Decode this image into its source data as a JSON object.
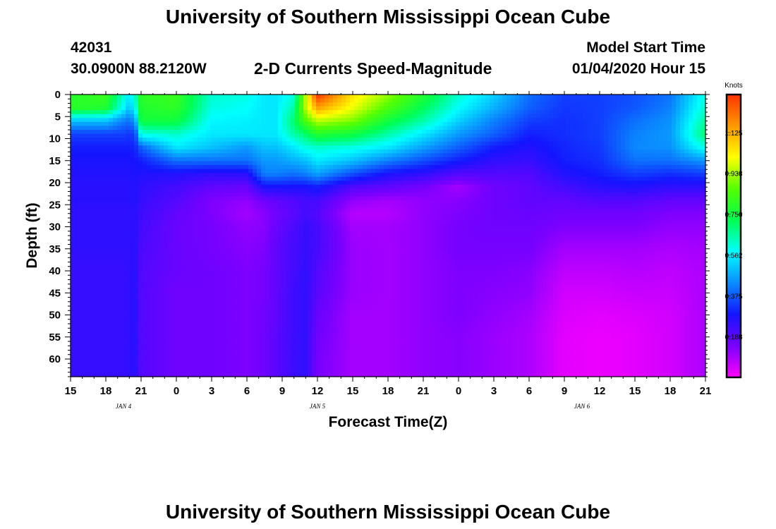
{
  "header": {
    "title": "University of Southern Mississippi Ocean Cube",
    "station_id": "42031",
    "location": "30.0900N 88.2120W",
    "product": "2-D Currents Speed-Magnitude",
    "model_start_label": "Model Start Time",
    "model_start_value": "01/04/2020 Hour 15"
  },
  "footer": {
    "title": "University of Southern Mississippi Ocean Cube"
  },
  "colors": {
    "scale": [
      "#ff00ff",
      "#7a00ff",
      "#1414ff",
      "#0a8cff",
      "#00ffff",
      "#00ff50",
      "#55ff00",
      "#ffff00",
      "#ff9900",
      "#ff3300"
    ]
  },
  "chart_data": {
    "type": "heatmap",
    "xlabel": "Forecast Time(Z)",
    "ylabel": "Depth (ft)",
    "colorbar_label": "Knots",
    "x_range": [
      0,
      54
    ],
    "y_range": [
      0,
      64
    ],
    "x_tick_labels": [
      "15",
      "18",
      "21",
      "0",
      "3",
      "6",
      "9",
      "12",
      "15",
      "18",
      "21",
      "0",
      "3",
      "6",
      "9",
      "12",
      "15",
      "18",
      "21"
    ],
    "y_ticks": [
      0,
      5,
      10,
      15,
      20,
      25,
      30,
      35,
      40,
      45,
      50,
      55,
      60
    ],
    "y_tick_labels": [
      "0",
      "5",
      "10",
      "15",
      "20",
      "25",
      "30",
      "35",
      "40",
      "45",
      "50",
      "55",
      "60"
    ],
    "date_labels": [
      {
        "text": "JAN 4",
        "x": 4.5
      },
      {
        "text": "JAN 5",
        "x": 21
      },
      {
        "text": "JAN 6",
        "x": 43.5
      }
    ],
    "colorbar_ticks": [
      0.188,
      0.375,
      0.562,
      0.75,
      0.938,
      1.125
    ],
    "colorbar_tick_labels": [
      "0.188",
      "0.375",
      "0.562",
      "0.750",
      "0.938",
      "1.125"
    ],
    "value_range": [
      0,
      1.3
    ],
    "x_hours": [
      0,
      3,
      4.5,
      5,
      5.5,
      6,
      9,
      12,
      15,
      16.5,
      17.5,
      19,
      20,
      21,
      24,
      27,
      30,
      33,
      36,
      39,
      42,
      45,
      48,
      51,
      54
    ],
    "depths": [
      0,
      3,
      6,
      9,
      12,
      15,
      18,
      21,
      24,
      27,
      30,
      35,
      40,
      45,
      50,
      55,
      60,
      64
    ],
    "values": [
      [
        0.78,
        0.8,
        0.5,
        0.34,
        0.3,
        0.28,
        0.27,
        0.26,
        0.26,
        0.25,
        0.25,
        0.25,
        0.24,
        0.24,
        0.24,
        0.24,
        0.24,
        0.24
      ],
      [
        0.82,
        0.78,
        0.5,
        0.34,
        0.3,
        0.28,
        0.27,
        0.26,
        0.26,
        0.25,
        0.25,
        0.25,
        0.24,
        0.24,
        0.24,
        0.24,
        0.24,
        0.24
      ],
      [
        0.62,
        0.58,
        0.42,
        0.34,
        0.3,
        0.28,
        0.27,
        0.26,
        0.26,
        0.25,
        0.25,
        0.25,
        0.24,
        0.24,
        0.24,
        0.24,
        0.24,
        0.24
      ],
      [
        0.55,
        0.5,
        0.4,
        0.33,
        0.3,
        0.28,
        0.27,
        0.26,
        0.26,
        0.25,
        0.25,
        0.25,
        0.25,
        0.25,
        0.25,
        0.25,
        0.25,
        0.25
      ],
      [
        0.62,
        0.58,
        0.45,
        0.34,
        0.31,
        0.29,
        0.28,
        0.27,
        0.27,
        0.26,
        0.26,
        0.26,
        0.26,
        0.26,
        0.26,
        0.26,
        0.26,
        0.26
      ],
      [
        0.8,
        0.78,
        0.75,
        0.6,
        0.38,
        0.3,
        0.27,
        0.25,
        0.24,
        0.23,
        0.22,
        0.21,
        0.2,
        0.2,
        0.2,
        0.2,
        0.2,
        0.2
      ],
      [
        0.82,
        0.8,
        0.75,
        0.62,
        0.55,
        0.4,
        0.27,
        0.22,
        0.2,
        0.18,
        0.17,
        0.17,
        0.17,
        0.16,
        0.16,
        0.16,
        0.16,
        0.16
      ],
      [
        0.62,
        0.6,
        0.57,
        0.55,
        0.5,
        0.4,
        0.25,
        0.18,
        0.14,
        0.14,
        0.15,
        0.15,
        0.16,
        0.16,
        0.16,
        0.16,
        0.16,
        0.16
      ],
      [
        0.6,
        0.58,
        0.56,
        0.55,
        0.45,
        0.4,
        0.26,
        0.17,
        0.12,
        0.1,
        0.12,
        0.13,
        0.14,
        0.14,
        0.14,
        0.14,
        0.14,
        0.14
      ],
      [
        0.55,
        0.55,
        0.55,
        0.55,
        0.5,
        0.45,
        0.42,
        0.28,
        0.16,
        0.13,
        0.13,
        0.14,
        0.15,
        0.15,
        0.16,
        0.16,
        0.16,
        0.16
      ],
      [
        0.55,
        0.55,
        0.55,
        0.55,
        0.5,
        0.45,
        0.42,
        0.28,
        0.18,
        0.16,
        0.17,
        0.18,
        0.18,
        0.18,
        0.18,
        0.19,
        0.19,
        0.19
      ],
      [
        0.6,
        0.65,
        0.7,
        0.65,
        0.55,
        0.48,
        0.4,
        0.28,
        0.2,
        0.19,
        0.21,
        0.22,
        0.22,
        0.23,
        0.23,
        0.23,
        0.23,
        0.23
      ],
      [
        0.95,
        0.95,
        0.85,
        0.7,
        0.6,
        0.5,
        0.42,
        0.28,
        0.22,
        0.22,
        0.24,
        0.24,
        0.25,
        0.25,
        0.25,
        0.25,
        0.25,
        0.25
      ],
      [
        1.3,
        1.15,
        0.95,
        0.78,
        0.62,
        0.55,
        0.46,
        0.3,
        0.22,
        0.2,
        0.22,
        0.22,
        0.2,
        0.19,
        0.17,
        0.16,
        0.15,
        0.15
      ],
      [
        1.05,
        1.0,
        0.9,
        0.75,
        0.6,
        0.5,
        0.36,
        0.2,
        0.12,
        0.08,
        0.1,
        0.11,
        0.11,
        0.11,
        0.1,
        0.1,
        0.1,
        0.1
      ],
      [
        0.92,
        0.85,
        0.75,
        0.65,
        0.55,
        0.42,
        0.28,
        0.18,
        0.1,
        0.08,
        0.1,
        0.1,
        0.1,
        0.1,
        0.1,
        0.1,
        0.1,
        0.1
      ],
      [
        0.78,
        0.72,
        0.65,
        0.55,
        0.46,
        0.36,
        0.25,
        0.15,
        0.12,
        0.12,
        0.12,
        0.12,
        0.12,
        0.12,
        0.12,
        0.12,
        0.12,
        0.12
      ],
      [
        0.62,
        0.58,
        0.52,
        0.45,
        0.38,
        0.3,
        0.2,
        0.1,
        0.13,
        0.14,
        0.15,
        0.15,
        0.14,
        0.14,
        0.14,
        0.13,
        0.13,
        0.13
      ],
      [
        0.52,
        0.48,
        0.42,
        0.38,
        0.3,
        0.25,
        0.2,
        0.16,
        0.16,
        0.16,
        0.16,
        0.15,
        0.14,
        0.13,
        0.12,
        0.11,
        0.11,
        0.11
      ],
      [
        0.4,
        0.38,
        0.34,
        0.3,
        0.27,
        0.24,
        0.2,
        0.18,
        0.18,
        0.17,
        0.16,
        0.15,
        0.13,
        0.12,
        0.1,
        0.09,
        0.09,
        0.09
      ],
      [
        0.34,
        0.33,
        0.32,
        0.32,
        0.31,
        0.3,
        0.27,
        0.22,
        0.18,
        0.16,
        0.14,
        0.1,
        0.07,
        0.05,
        0.04,
        0.03,
        0.03,
        0.03
      ],
      [
        0.34,
        0.34,
        0.34,
        0.34,
        0.33,
        0.32,
        0.3,
        0.26,
        0.2,
        0.16,
        0.14,
        0.1,
        0.07,
        0.05,
        0.03,
        0.02,
        0.02,
        0.02
      ],
      [
        0.36,
        0.37,
        0.4,
        0.42,
        0.43,
        0.4,
        0.34,
        0.27,
        0.2,
        0.16,
        0.14,
        0.1,
        0.08,
        0.06,
        0.04,
        0.03,
        0.03,
        0.03
      ],
      [
        0.4,
        0.42,
        0.44,
        0.45,
        0.44,
        0.4,
        0.32,
        0.25,
        0.18,
        0.14,
        0.12,
        0.09,
        0.07,
        0.06,
        0.05,
        0.05,
        0.05,
        0.05
      ],
      [
        0.6,
        0.62,
        0.66,
        0.7,
        0.6,
        0.45,
        0.34,
        0.25,
        0.18,
        0.14,
        0.12,
        0.1,
        0.09,
        0.09,
        0.09,
        0.09,
        0.09,
        0.09
      ]
    ]
  }
}
